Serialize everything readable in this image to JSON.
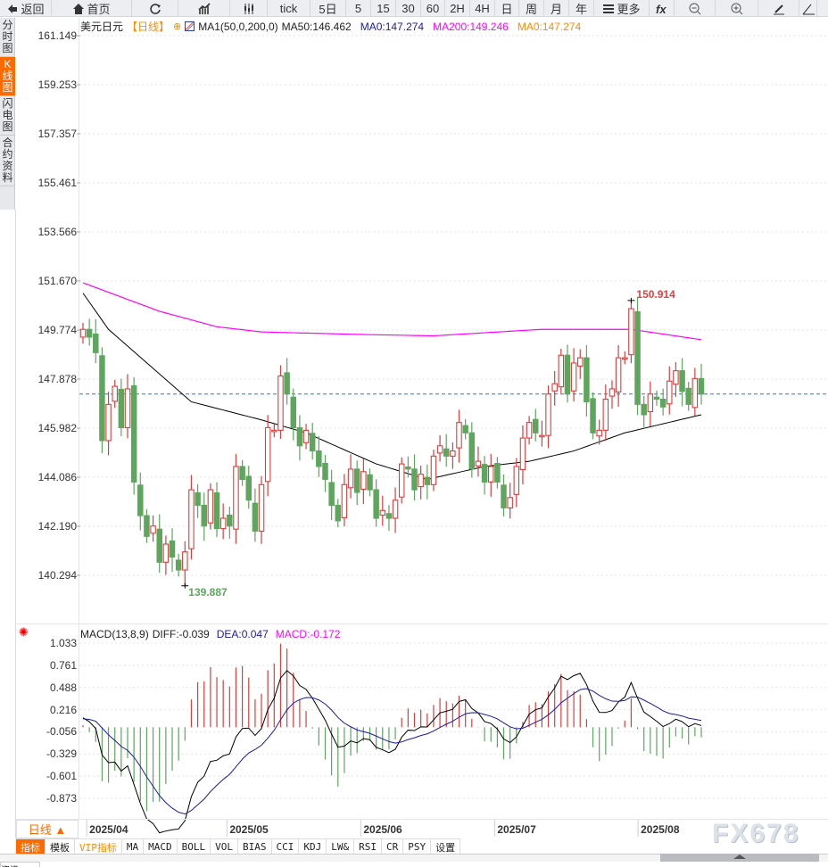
{
  "toolbar": {
    "items": [
      {
        "label": "返回",
        "icon": "back-arrow-icon",
        "w": 58
      },
      {
        "label": "首页",
        "icon": "home-icon",
        "w": 90
      },
      {
        "label": "",
        "icon": "refresh-icon",
        "w": 52
      },
      {
        "label": "",
        "icon": "bar-chart-icon",
        "w": 58
      },
      {
        "label": "",
        "icon": "candlestick-icon",
        "w": 42
      },
      {
        "label": "tick",
        "icon": "",
        "w": 48
      },
      {
        "label": "5日",
        "icon": "",
        "w": 40
      },
      {
        "label": "5",
        "icon": "",
        "w": 28
      },
      {
        "label": "15",
        "icon": "",
        "w": 28
      },
      {
        "label": "30",
        "icon": "",
        "w": 28
      },
      {
        "label": "60",
        "icon": "",
        "w": 27
      },
      {
        "label": "2H",
        "icon": "",
        "w": 28
      },
      {
        "label": "4H",
        "icon": "",
        "w": 28
      },
      {
        "label": "日",
        "icon": "",
        "w": 27
      },
      {
        "label": "周",
        "icon": "",
        "w": 28
      },
      {
        "label": "月",
        "icon": "",
        "w": 28
      },
      {
        "label": "年",
        "icon": "",
        "w": 28
      },
      {
        "label": "更多",
        "icon": "menu-icon",
        "w": 62
      },
      {
        "label": "",
        "icon": "function-icon",
        "w": 28
      },
      {
        "label": "",
        "icon": "zoom-out-icon",
        "w": 46
      },
      {
        "label": "",
        "icon": "zoom-in-icon",
        "w": 48
      },
      {
        "label": "",
        "icon": "pen-icon",
        "w": 46
      },
      {
        "label": "",
        "icon": "triangle-icon",
        "w": 20
      }
    ]
  },
  "sidebar": {
    "items": [
      {
        "label": "分时图",
        "active": false
      },
      {
        "label": "K线图",
        "active": true
      },
      {
        "label": "闪电图",
        "active": false
      },
      {
        "label": "合约资料",
        "active": false
      }
    ]
  },
  "legend": {
    "symbol": "美元日元",
    "period": "【日线】",
    "indicator": "MA1(50,0,200,0)",
    "ma50": "MA50:146.462",
    "ma0a": "MA0:147.274",
    "ma200": "MA200:149.246",
    "ma0b": "MA0:147.274"
  },
  "macd_legend": {
    "name": "MACD(13,8,9)",
    "diff": "DIFF:-0.039",
    "dea": "DEA:0.047",
    "macd": "MACD:-0.172"
  },
  "colors": {
    "up": "#e03c3c",
    "down": "#5ea65e",
    "ma50": "#000000",
    "ma200": "#ff00ff",
    "dea": "#1a1aa6",
    "accent": "#ff6a00",
    "last": "#1a7ae0"
  },
  "chart_data": [
    {
      "type": "candlestick",
      "title": "美元日元 日线",
      "y_ticks": [
        "161.149",
        "159.253",
        "157.357",
        "155.461",
        "153.566",
        "151.670",
        "149.774",
        "147.878",
        "145.982",
        "144.086",
        "142.190",
        "140.294"
      ],
      "ylim": [
        140.294,
        161.149
      ],
      "closes": [
        149.8,
        149.5,
        148.9,
        145.5,
        146.9,
        147.6,
        146.0,
        147.5,
        143.9,
        142.6,
        141.8,
        142.2,
        140.8,
        141.5,
        141.0,
        140.5,
        141.2,
        143.6,
        143.0,
        142.2,
        143.6,
        142.1,
        142.5,
        142.2,
        144.5,
        144.0,
        143.2,
        142.0,
        143.8,
        146.0,
        145.9,
        148.0,
        147.3,
        146.0,
        145.3,
        145.9,
        145.1,
        144.5,
        144.0,
        143.0,
        142.4,
        143.8,
        144.4,
        143.5,
        144.3,
        143.6,
        142.5,
        142.8,
        142.5,
        143.2,
        144.6,
        144.4,
        143.6,
        144.2,
        143.8,
        144.9,
        145.3,
        144.9,
        145.1,
        146.2,
        145.8,
        144.4,
        144.7,
        143.9,
        144.5,
        143.9,
        142.9,
        143.3,
        144.5,
        145.6,
        146.2,
        145.8,
        145.7,
        147.3,
        147.7,
        148.8,
        147.3,
        148.5,
        148.7,
        147.0,
        145.8,
        145.9,
        147.1,
        147.5,
        148.7,
        148.7,
        150.6,
        146.9,
        146.5,
        147.3,
        147.1,
        146.8,
        147.8,
        148.2,
        147.4,
        146.9,
        147.9,
        147.3
      ],
      "high_label": {
        "value": "150.914",
        "index": 86
      },
      "low_label": {
        "value": "139.887",
        "index": 16
      },
      "last_price": 147.3,
      "ma50": [
        [
          0,
          151.2
        ],
        [
          4,
          149.8
        ],
        [
          17,
          147.0
        ],
        [
          28,
          146.3
        ],
        [
          35,
          145.8
        ],
        [
          46,
          144.6
        ],
        [
          54,
          144.0
        ],
        [
          63,
          144.5
        ],
        [
          70,
          144.7
        ],
        [
          77,
          145.1
        ],
        [
          85,
          145.8
        ],
        [
          97,
          146.5
        ]
      ],
      "ma200": [
        [
          0,
          151.6
        ],
        [
          12,
          150.5
        ],
        [
          21,
          149.9
        ],
        [
          28,
          149.7
        ],
        [
          44,
          149.6
        ],
        [
          55,
          149.55
        ],
        [
          72,
          149.8
        ],
        [
          86,
          149.8
        ],
        [
          97,
          149.4
        ]
      ],
      "x_labels": [
        {
          "label": "2025/04",
          "index": 1
        },
        {
          "label": "2025/05",
          "index": 23
        },
        {
          "label": "2025/06",
          "index": 44
        },
        {
          "label": "2025/07",
          "index": 65
        },
        {
          "label": "2025/08",
          "index": 87.5
        }
      ]
    },
    {
      "type": "macd",
      "params": [
        13,
        8,
        9
      ],
      "y_ticks": [
        "1.033",
        "0.761",
        "0.488",
        "0.216",
        "-0.056",
        "-0.329",
        "-0.601",
        "-0.873"
      ],
      "ylim": [
        -0.873,
        1.033
      ]
    }
  ],
  "period_button": "日线 ▲",
  "tabs": [
    {
      "label": "指标",
      "active": true
    },
    {
      "label": "模板"
    },
    {
      "label": "VIP指标",
      "vip": true
    },
    {
      "label": "MA"
    },
    {
      "label": "MACD"
    },
    {
      "label": "BOLL"
    },
    {
      "label": "VOL"
    },
    {
      "label": "BIAS"
    },
    {
      "label": "CCI"
    },
    {
      "label": "KDJ"
    },
    {
      "label": "LW&"
    },
    {
      "label": "RSI"
    },
    {
      "label": "CR"
    },
    {
      "label": "PSY"
    },
    {
      "label": "设置"
    }
  ],
  "watermark": "FX678",
  "bottom_tab": "资讯"
}
